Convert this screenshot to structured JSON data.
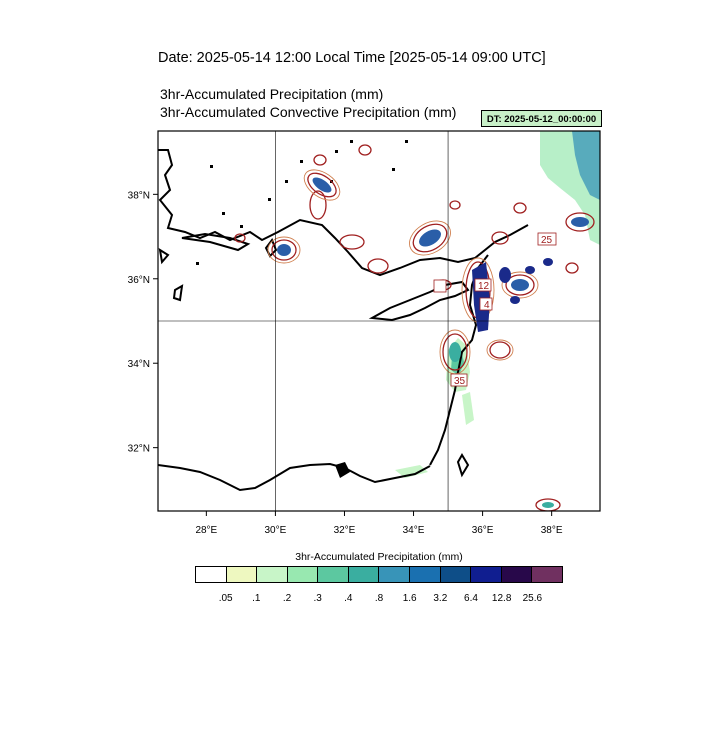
{
  "title": {
    "date_line": "Date: 2025-05-14  12:00 Local Time [2025-05-14  09:00 UTC]",
    "variable_1": "3hr-Accumulated Precipitation   (mm)",
    "variable_2": "3hr-Accumulated Convective Precipitation   (mm)",
    "dt_badge": "DT: 2025-05-12_00:00:00",
    "dt_badge_color": "#c8f0c8"
  },
  "map": {
    "lon_range": [
      26.6,
      39.4
    ],
    "lat_range": [
      30.5,
      39.5
    ],
    "x_ticks": [
      {
        "value": 28,
        "label": "28°E"
      },
      {
        "value": 30,
        "label": "30°E"
      },
      {
        "value": 32,
        "label": "32°E"
      },
      {
        "value": 34,
        "label": "34°E"
      },
      {
        "value": 36,
        "label": "36°E"
      },
      {
        "value": 38,
        "label": "38°E"
      }
    ],
    "y_ticks": [
      {
        "value": 32,
        "label": "32°N"
      },
      {
        "value": 34,
        "label": "34°N"
      },
      {
        "value": 36,
        "label": "36°N"
      },
      {
        "value": 38,
        "label": "38°N"
      }
    ],
    "grid_lon": [
      30,
      35
    ],
    "grid_lat": [
      35
    ],
    "contour_labels": [
      "25",
      "12",
      "4",
      "35"
    ],
    "contour_color": "#a02020"
  },
  "colorbar": {
    "title": "3hr-Accumulated Precipitation  (mm)",
    "colors": [
      "#ffffff",
      "#eef8c0",
      "#c8f5c8",
      "#98e8b0",
      "#5cc8a0",
      "#3aaea0",
      "#3894b8",
      "#1a70b0",
      "#0e4e88",
      "#101e90",
      "#28084a",
      "#703060"
    ],
    "labels": [
      ".05",
      ".1",
      ".2",
      ".3",
      ".4",
      ".8",
      "1.6",
      "3.2",
      "6.4",
      "12.8",
      "25.6"
    ]
  }
}
